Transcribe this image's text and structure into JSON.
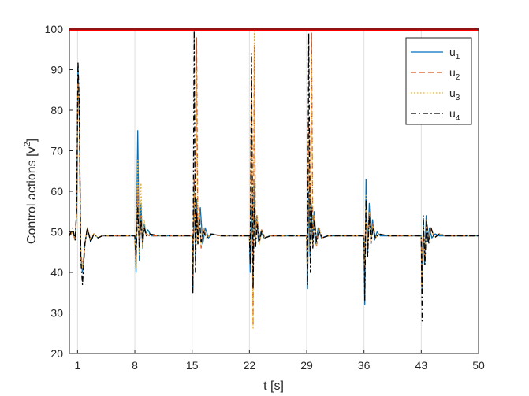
{
  "chart_data": {
    "type": "line",
    "title": "",
    "xlabel": "t [s]",
    "ylabel_main": "Control actions [v",
    "ylabel_sup": "2",
    "ylabel_tail": "]",
    "xlim": [
      0,
      50
    ],
    "ylim": [
      20,
      100
    ],
    "xticks": [
      1,
      8,
      15,
      22,
      29,
      36,
      43,
      50
    ],
    "yticks": [
      20,
      30,
      40,
      50,
      60,
      70,
      80,
      90,
      100
    ],
    "grid": "vertical-x-only",
    "legend_position": "top-right",
    "saturation_line": {
      "y": 100,
      "color": "#ff0000"
    },
    "series": [
      {
        "name": "u",
        "sub": "1",
        "color": "#0072bd",
        "dash": "solid",
        "x": [
          0.0,
          0.4,
          0.7,
          0.9,
          1.05,
          1.2,
          1.4,
          1.6,
          1.9,
          2.2,
          2.6,
          3.0,
          3.5,
          4.0,
          5.0,
          6.0,
          7.5,
          8.0,
          8.15,
          8.35,
          8.55,
          8.75,
          8.95,
          9.15,
          9.35,
          9.6,
          10.0,
          11.0,
          14.0,
          15.0,
          15.1,
          15.25,
          15.4,
          15.55,
          15.7,
          16.0,
          16.3,
          16.6,
          17.0,
          17.5,
          18.5,
          21.0,
          22.0,
          22.1,
          22.25,
          22.4,
          22.55,
          22.7,
          22.9,
          23.1,
          23.4,
          23.8,
          24.5,
          28.0,
          29.0,
          29.1,
          29.25,
          29.4,
          29.55,
          29.7,
          29.9,
          30.1,
          30.4,
          30.8,
          31.5,
          35.0,
          36.0,
          36.1,
          36.25,
          36.45,
          36.65,
          36.85,
          37.05,
          37.3,
          37.6,
          38.0,
          39.0,
          42.5,
          43.0,
          43.1,
          43.25,
          43.4,
          43.6,
          43.8,
          44.0,
          44.3,
          44.7,
          45.2,
          46.0,
          50.0
        ],
        "y": [
          49,
          50,
          48,
          55,
          91,
          80,
          44,
          40,
          47,
          51,
          47.5,
          49.5,
          48.5,
          49,
          49,
          49,
          49,
          49,
          40,
          75,
          43,
          57,
          46,
          52,
          49.5,
          50.5,
          49,
          49,
          49,
          49,
          36,
          63,
          44,
          58,
          50,
          56,
          47,
          51,
          48.5,
          49.5,
          49,
          49,
          49,
          40,
          56,
          44,
          63,
          48,
          54,
          47.5,
          50,
          48.5,
          49,
          49,
          49,
          36,
          60,
          44,
          57,
          48,
          55,
          47,
          51,
          48.5,
          49,
          49,
          49,
          32,
          63,
          45,
          57,
          48,
          53,
          48,
          50,
          49,
          49,
          49,
          49,
          35,
          53,
          42,
          54,
          47.5,
          51,
          48.5,
          49.5,
          49,
          49,
          49
        ]
      },
      {
        "name": "u",
        "sub": "2",
        "color": "#d95319",
        "dash": "dashed",
        "x": [
          0.0,
          0.4,
          0.7,
          0.9,
          1.05,
          1.2,
          1.4,
          1.6,
          1.9,
          2.2,
          2.6,
          3.0,
          3.5,
          4.0,
          6.0,
          8.0,
          8.15,
          8.35,
          8.55,
          8.75,
          8.95,
          9.15,
          9.4,
          9.8,
          11.0,
          15.0,
          15.1,
          15.25,
          15.4,
          15.55,
          15.7,
          15.9,
          16.1,
          16.4,
          16.8,
          17.3,
          18.5,
          22.0,
          22.1,
          22.25,
          22.45,
          22.6,
          22.75,
          22.95,
          23.2,
          23.5,
          23.9,
          24.6,
          29.0,
          29.1,
          29.25,
          29.45,
          29.6,
          29.75,
          29.95,
          30.2,
          30.5,
          30.9,
          31.6,
          36.0,
          36.1,
          36.25,
          36.45,
          36.65,
          36.85,
          37.1,
          37.4,
          37.8,
          39.0,
          43.0,
          43.1,
          43.25,
          43.45,
          43.65,
          43.9,
          44.2,
          44.6,
          45.2,
          46.0,
          50.0
        ],
        "y": [
          49,
          50,
          48,
          55,
          88,
          78,
          45,
          41,
          47,
          51,
          48,
          49.5,
          48.5,
          49,
          49,
          49,
          43,
          61,
          46,
          54,
          47,
          51,
          49.5,
          49,
          49,
          49,
          38,
          63,
          45,
          98,
          47,
          56,
          46,
          51,
          48.5,
          49.5,
          49,
          49,
          47,
          88,
          27,
          96,
          47,
          54,
          47,
          50.5,
          48.5,
          49,
          49,
          42,
          78,
          45,
          99,
          47,
          54,
          46.5,
          51,
          48.5,
          49,
          49,
          41,
          57,
          46,
          55,
          47.5,
          52,
          48.5,
          49.5,
          49,
          49,
          37,
          51,
          43,
          53,
          47.5,
          51,
          48.5,
          49.5,
          49,
          49
        ]
      },
      {
        "name": "u",
        "sub": "3",
        "color": "#edb120",
        "dash": "dotted",
        "x": [
          0.0,
          0.4,
          0.7,
          0.9,
          1.05,
          1.2,
          1.4,
          1.6,
          1.9,
          2.2,
          2.6,
          3.0,
          3.5,
          4.0,
          6.0,
          8.0,
          8.15,
          8.35,
          8.55,
          8.75,
          8.95,
          9.15,
          9.4,
          9.8,
          11.0,
          15.0,
          15.1,
          15.25,
          15.4,
          15.55,
          15.7,
          15.9,
          16.1,
          16.4,
          16.8,
          17.3,
          18.5,
          22.0,
          22.1,
          22.25,
          22.45,
          22.6,
          22.75,
          22.95,
          23.2,
          23.5,
          23.9,
          24.6,
          29.0,
          29.1,
          29.25,
          29.45,
          29.6,
          29.75,
          29.95,
          30.2,
          30.5,
          30.9,
          31.6,
          36.0,
          36.1,
          36.25,
          36.45,
          36.65,
          36.85,
          37.1,
          37.4,
          37.8,
          39.0,
          43.0,
          43.1,
          43.25,
          43.45,
          43.65,
          43.9,
          44.2,
          44.6,
          45.2,
          46.0,
          50.0
        ],
        "y": [
          49,
          50,
          48,
          55,
          87,
          77,
          45,
          41,
          47,
          51,
          48,
          49.5,
          48.5,
          49,
          49,
          49,
          41,
          68,
          44,
          62,
          46,
          53,
          49,
          49.5,
          49,
          49,
          40,
          61,
          45,
          90,
          47,
          55,
          46.5,
          51,
          48.5,
          49.5,
          49,
          49,
          45,
          84,
          26,
          100,
          47,
          54,
          47,
          50.5,
          48.5,
          49,
          49,
          40,
          74,
          45,
          94,
          47,
          54,
          46.5,
          51,
          48.5,
          49,
          49,
          42,
          59,
          46,
          55,
          47.5,
          52,
          48.5,
          49.5,
          49,
          49,
          36,
          52,
          43,
          53,
          47.5,
          51,
          48.5,
          49.5,
          49,
          49
        ]
      },
      {
        "name": "u",
        "sub": "4",
        "color": "#000000",
        "dash": "dashdot",
        "x": [
          0.0,
          0.4,
          0.7,
          0.9,
          1.05,
          1.2,
          1.4,
          1.6,
          1.9,
          2.2,
          2.6,
          3.0,
          3.5,
          4.0,
          6.0,
          8.0,
          8.15,
          8.35,
          8.55,
          8.75,
          8.95,
          9.15,
          9.4,
          9.8,
          11.0,
          15.0,
          15.1,
          15.25,
          15.4,
          15.55,
          15.7,
          15.9,
          16.1,
          16.4,
          16.8,
          17.3,
          18.5,
          22.0,
          22.1,
          22.25,
          22.45,
          22.6,
          22.75,
          22.95,
          23.2,
          23.5,
          23.9,
          24.6,
          29.0,
          29.1,
          29.25,
          29.45,
          29.6,
          29.75,
          29.95,
          30.2,
          30.5,
          30.9,
          31.6,
          36.0,
          36.1,
          36.25,
          36.45,
          36.65,
          36.85,
          37.1,
          37.4,
          37.8,
          39.0,
          43.0,
          43.1,
          43.25,
          43.45,
          43.65,
          43.9,
          44.2,
          44.6,
          45.2,
          46.0,
          50.0
        ],
        "y": [
          49,
          51,
          48,
          56,
          92,
          82,
          43,
          37,
          47,
          51,
          47.5,
          49.5,
          48.5,
          49,
          49,
          49,
          44,
          56,
          46,
          53,
          47.5,
          51,
          49,
          49.5,
          49,
          49,
          35,
          100,
          40,
          55,
          47,
          53,
          47.5,
          50,
          48.5,
          49.5,
          49,
          49,
          42,
          94,
          36,
          56,
          46,
          52,
          47.5,
          50,
          48.5,
          49,
          49,
          37,
          99,
          40,
          56,
          46,
          53,
          47.5,
          50,
          48.5,
          49,
          49,
          33,
          58,
          44,
          54,
          47,
          51,
          48.5,
          49.5,
          49,
          49,
          28,
          54,
          42,
          53,
          47,
          51,
          48.5,
          49.5,
          49,
          49
        ]
      }
    ]
  }
}
